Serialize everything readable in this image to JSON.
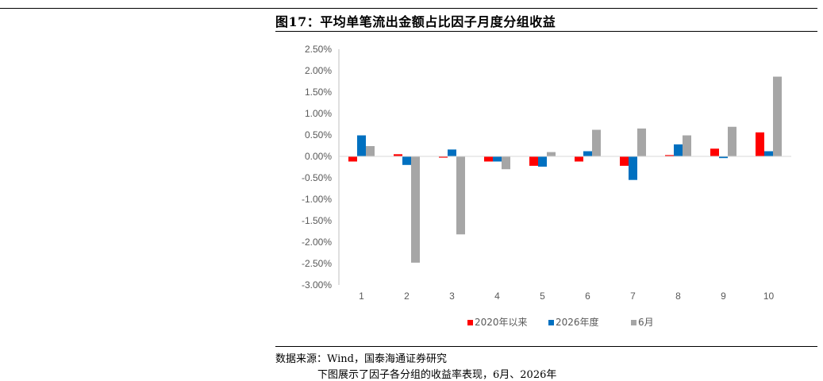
{
  "figure": {
    "title": "图17：平均单笔流出金额占比因子月度分组收益",
    "source": "数据来源：Wind，国泰海通证券研究",
    "body_text": "下图展示了因子各分组的收益率表现，6月、2026年"
  },
  "chart_data": {
    "type": "bar",
    "title": "",
    "xlabel": "",
    "ylabel": "",
    "categories": [
      "1",
      "2",
      "3",
      "4",
      "5",
      "6",
      "7",
      "8",
      "9",
      "10"
    ],
    "ylim": [
      -3.0,
      2.5
    ],
    "yticks": [
      "2.50%",
      "2.00%",
      "1.50%",
      "1.00%",
      "0.50%",
      "0.00%",
      "-0.50%",
      "-1.00%",
      "-1.50%",
      "-2.00%",
      "-2.50%",
      "-3.00%"
    ],
    "ytick_values": [
      2.5,
      2.0,
      1.5,
      1.0,
      0.5,
      0.0,
      -0.5,
      -1.0,
      -1.5,
      -2.0,
      -2.5,
      -3.0
    ],
    "legend_position": "bottom",
    "grid": false,
    "series": [
      {
        "name": "2020年以来",
        "color": "#ff0000",
        "values": [
          -0.12,
          0.05,
          -0.03,
          -0.12,
          -0.22,
          -0.12,
          -0.22,
          0.03,
          0.18,
          0.56
        ]
      },
      {
        "name": "2026年度",
        "color": "#0070c0",
        "values": [
          0.49,
          -0.2,
          0.16,
          -0.12,
          -0.24,
          0.12,
          -0.55,
          0.28,
          -0.04,
          0.12
        ]
      },
      {
        "name": "6月",
        "color": "#a6a6a6",
        "values": [
          0.24,
          -2.48,
          -1.82,
          -0.3,
          0.1,
          0.62,
          0.65,
          0.49,
          0.69,
          1.86
        ]
      }
    ]
  }
}
